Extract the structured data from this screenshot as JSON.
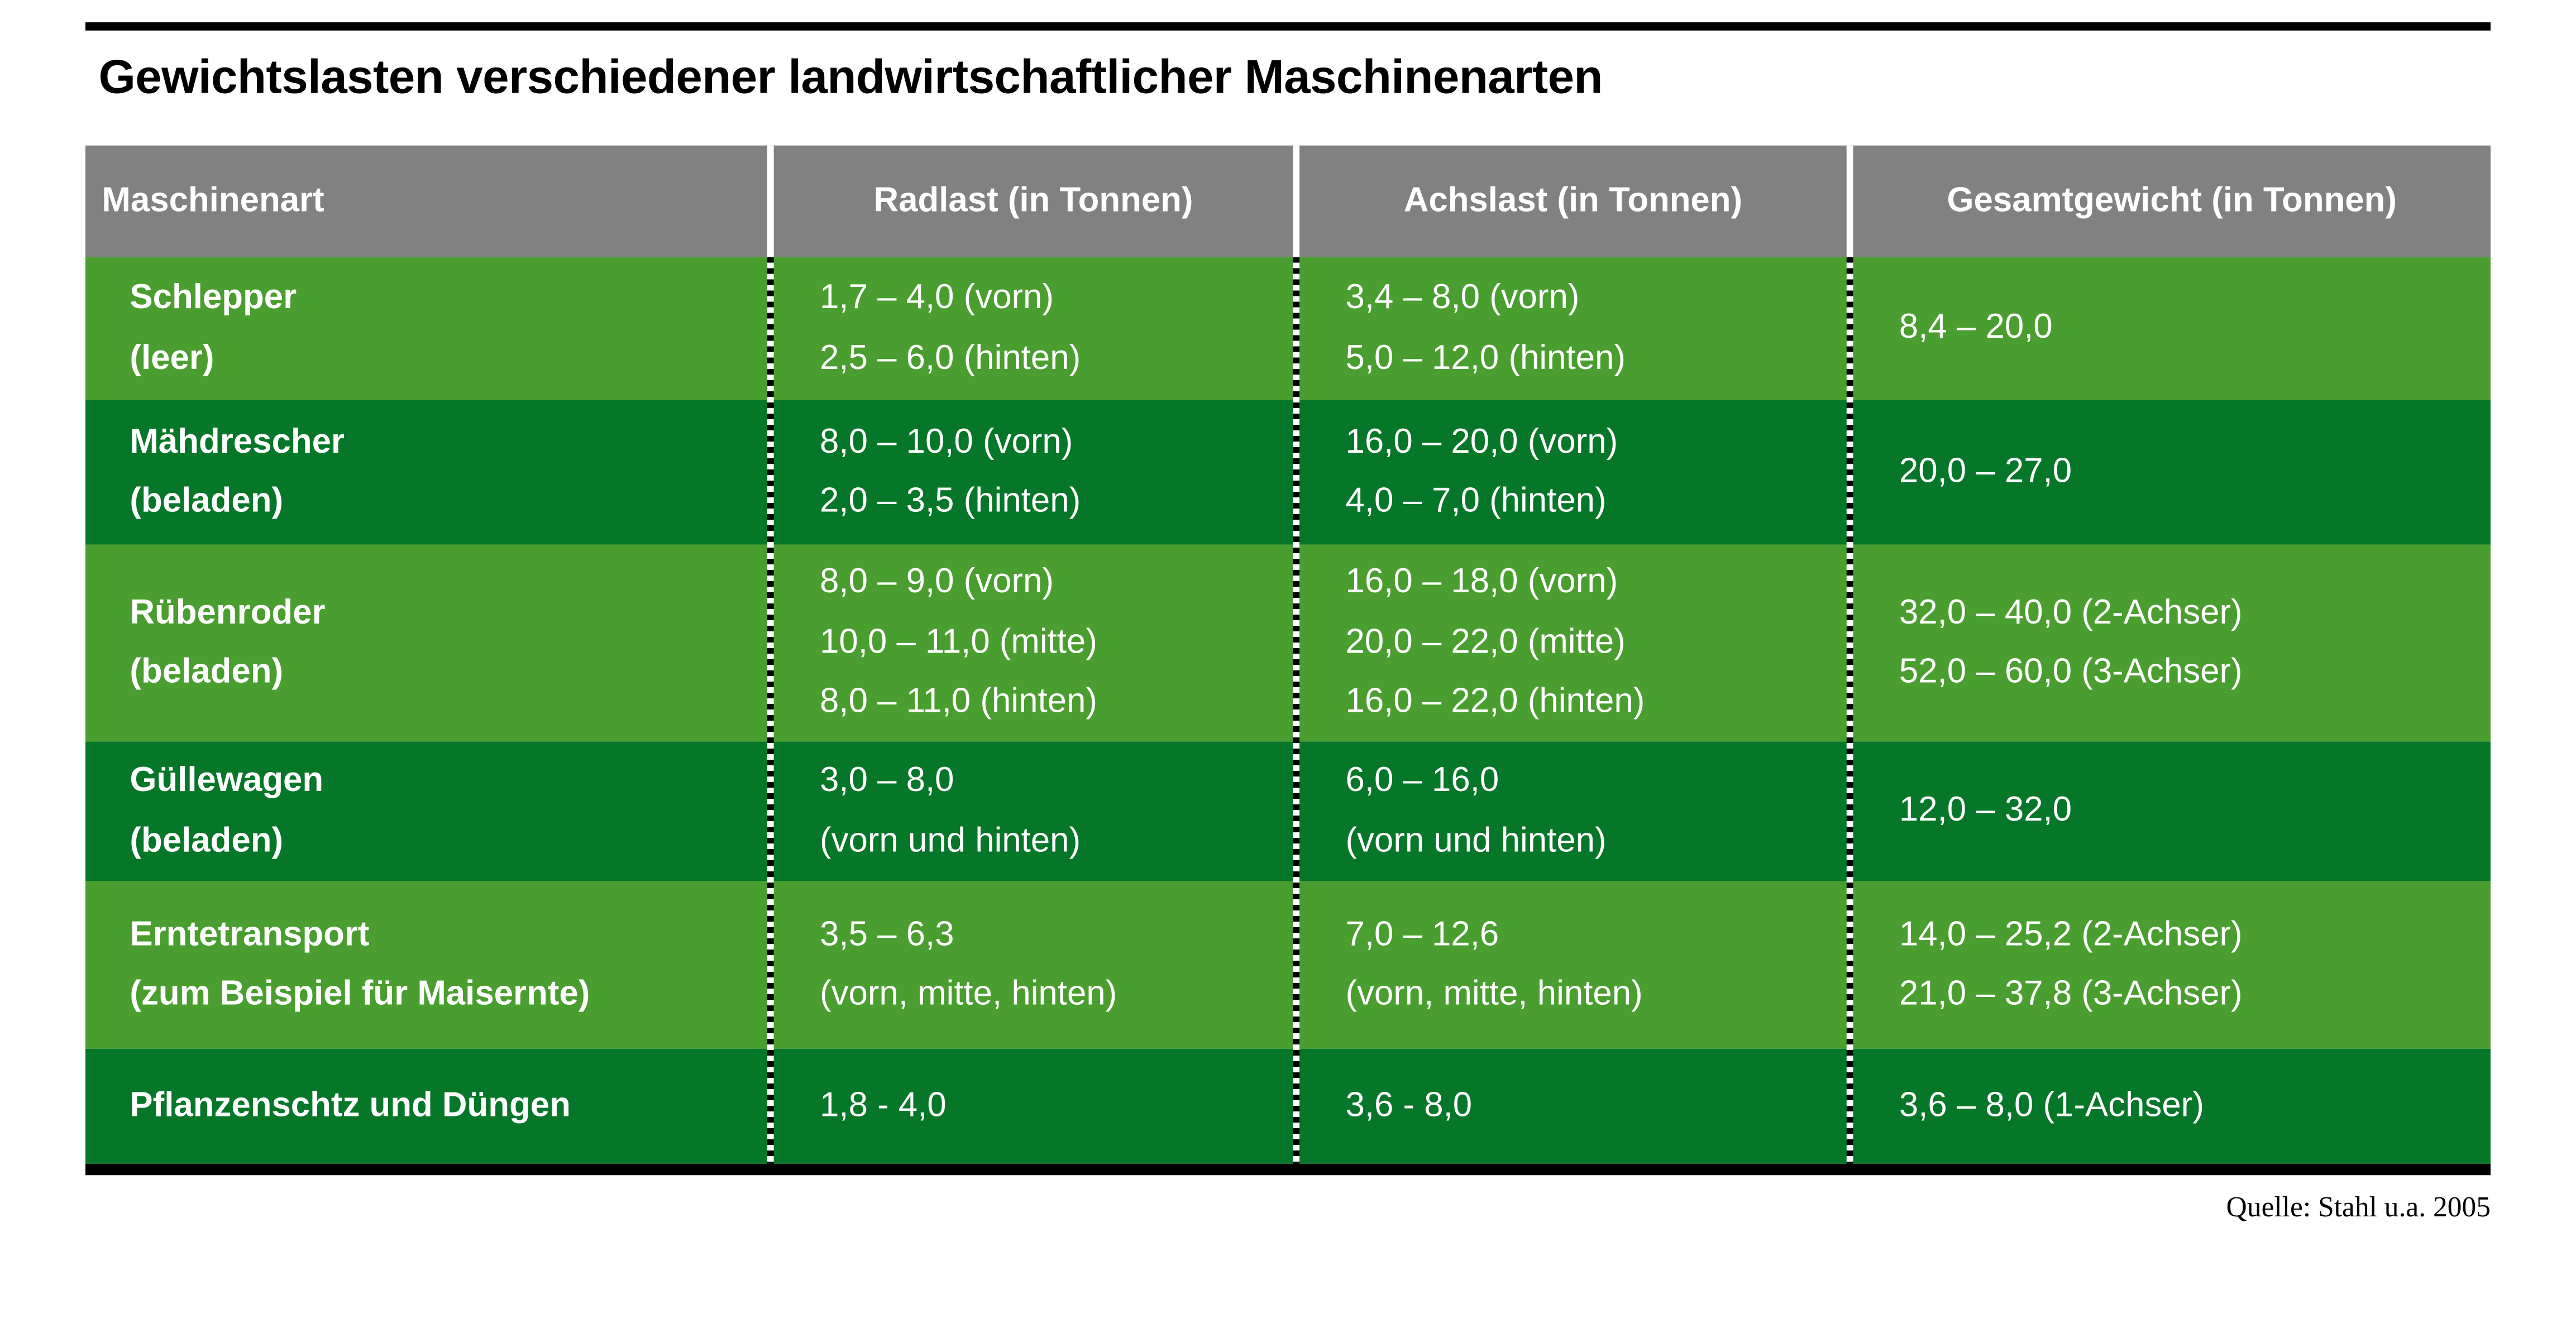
{
  "title": "Gewichtslasten verschiedener landwirtschaftlicher Maschinenarten",
  "source": "Quelle: Stahl u.a. 2005",
  "colors": {
    "light_green": "#4a9e2f",
    "dark_green": "#067628",
    "header_gray": "#818181",
    "rule_black": "#000000",
    "header_text": "#ffffff",
    "body_text": "#ffffff",
    "title_text": "#000000"
  },
  "chart_data": {
    "type": "table",
    "title": "Gewichtslasten verschiedener landwirtschaftlicher Maschinenarten",
    "columns": [
      "Maschinenart",
      "Radlast (in Tonnen)",
      "Achslast (in Tonnen)",
      "Gesamtgewicht (in Tonnen)"
    ],
    "rows": [
      {
        "maschinenart": [
          "Schlepper",
          "(leer)"
        ],
        "radlast": [
          "1,7 – 4,0 (vorn)",
          "2,5 – 6,0 (hinten)"
        ],
        "achslast": [
          "3,4 – 8,0 (vorn)",
          "5,0 – 12,0 (hinten)"
        ],
        "gesamtgewicht": [
          "8,4 – 20,0"
        ]
      },
      {
        "maschinenart": [
          "Mähdrescher",
          "(beladen)"
        ],
        "radlast": [
          "8,0 – 10,0 (vorn)",
          "2,0 – 3,5 (hinten)"
        ],
        "achslast": [
          "16,0 – 20,0 (vorn)",
          "4,0 – 7,0 (hinten)"
        ],
        "gesamtgewicht": [
          "20,0 – 27,0"
        ]
      },
      {
        "maschinenart": [
          "Rübenroder",
          "(beladen)"
        ],
        "radlast": [
          "8,0 – 9,0 (vorn)",
          "10,0 – 11,0 (mitte)",
          "8,0 – 11,0 (hinten)"
        ],
        "achslast": [
          "16,0 – 18,0 (vorn)",
          "20,0 – 22,0 (mitte)",
          "16,0 – 22,0 (hinten)"
        ],
        "gesamtgewicht": [
          "32,0 – 40,0 (2-Achser)",
          "52,0 – 60,0 (3-Achser)"
        ]
      },
      {
        "maschinenart": [
          "Güllewagen",
          "(beladen)"
        ],
        "radlast": [
          "3,0 – 8,0",
          "(vorn und hinten)"
        ],
        "achslast": [
          "6,0 – 16,0",
          "(vorn und hinten)"
        ],
        "gesamtgewicht": [
          "12,0 – 32,0"
        ]
      },
      {
        "maschinenart": [
          "Erntetransport",
          "(zum Beispiel für Maisernte)"
        ],
        "radlast": [
          "3,5 – 6,3",
          "(vorn, mitte, hinten)"
        ],
        "achslast": [
          "7,0 – 12,6",
          "(vorn, mitte, hinten)"
        ],
        "gesamtgewicht": [
          "14,0 – 25,2 (2-Achser)",
          "21,0 – 37,8 (3-Achser)"
        ]
      },
      {
        "maschinenart": [
          "Pflanzenschtz und Düngen"
        ],
        "radlast": [
          "1,8 - 4,0"
        ],
        "achslast": [
          "3,6 - 8,0"
        ],
        "gesamtgewicht": [
          "3,6 – 8,0 (1-Achser)"
        ]
      }
    ],
    "source": "Quelle: Stahl u.a. 2005"
  }
}
